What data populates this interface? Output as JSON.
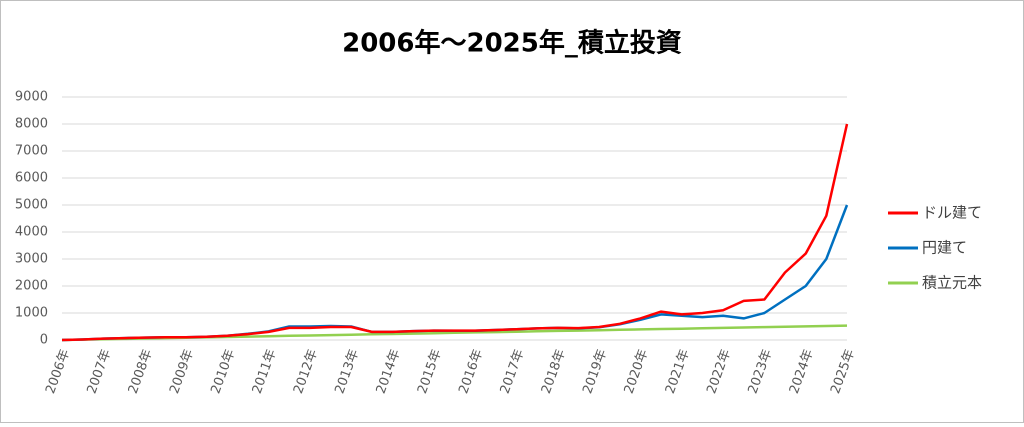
{
  "chart_data": {
    "type": "line",
    "title": "2006年～2025年_積立投資",
    "categories": [
      "2006年",
      null,
      "2007年",
      null,
      "2008年",
      null,
      "2009年",
      null,
      "2010年",
      null,
      "2011年",
      null,
      "2012年",
      null,
      "2013年",
      null,
      "2014年",
      null,
      "2015年",
      null,
      "2016年",
      null,
      "2017年",
      null,
      "2018年",
      null,
      "2019年",
      null,
      "2020年",
      null,
      "2021年",
      null,
      "2022年",
      null,
      "2023年",
      null,
      "2024年",
      null,
      "2025年"
    ],
    "series": [
      {
        "name": "ドル建て",
        "color": "#ff0000",
        "values": [
          0,
          20,
          50,
          70,
          90,
          100,
          100,
          120,
          160,
          220,
          300,
          450,
          450,
          480,
          480,
          300,
          300,
          330,
          350,
          350,
          350,
          370,
          400,
          430,
          450,
          440,
          480,
          600,
          800,
          1050,
          950,
          1000,
          1100,
          1450,
          1500,
          2500,
          3200,
          4600,
          8000
        ]
      },
      {
        "name": "円建て",
        "color": "#0070c0",
        "values": [
          0,
          20,
          50,
          70,
          90,
          100,
          100,
          120,
          160,
          230,
          320,
          500,
          500,
          520,
          500,
          300,
          300,
          330,
          350,
          340,
          340,
          370,
          400,
          430,
          450,
          430,
          470,
          580,
          750,
          950,
          900,
          850,
          900,
          800,
          1000,
          1500,
          2000,
          3000,
          5000
        ]
      },
      {
        "name": "積立元本",
        "color": "#92d050",
        "values": [
          0,
          14,
          28,
          42,
          56,
          70,
          84,
          98,
          112,
          126,
          140,
          154,
          168,
          182,
          196,
          210,
          224,
          238,
          252,
          266,
          280,
          294,
          308,
          322,
          336,
          350,
          364,
          378,
          392,
          406,
          420,
          434,
          448,
          462,
          476,
          490,
          504,
          518,
          532
        ]
      }
    ],
    "ylim": [
      0,
      9000
    ],
    "yticks": [
      0,
      1000,
      2000,
      3000,
      4000,
      5000,
      6000,
      7000,
      8000,
      9000
    ],
    "grid": true,
    "legend": "right"
  }
}
